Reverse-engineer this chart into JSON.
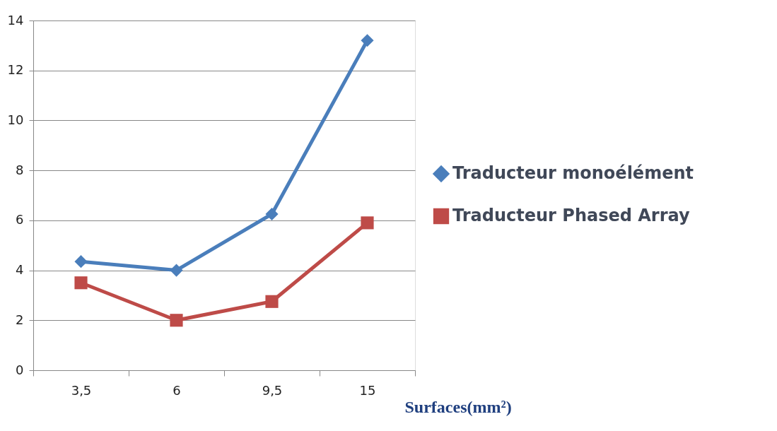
{
  "chart_data": {
    "type": "line",
    "xlabel": "Surfaces(mm²)",
    "categories": [
      "3,5",
      "6",
      "9,5",
      "15"
    ],
    "series": [
      {
        "name": "Traducteur monoélément",
        "color": "#4a7ebb",
        "marker": "diamond",
        "values": [
          4.35,
          4.0,
          6.25,
          13.2
        ]
      },
      {
        "name": "Traducteur Phased Array",
        "color": "#be4b48",
        "marker": "square",
        "values": [
          3.5,
          2.0,
          2.75,
          5.9
        ]
      }
    ],
    "ylim": [
      0,
      14
    ],
    "yticks": [
      0,
      2,
      4,
      6,
      8,
      10,
      12,
      14
    ],
    "grid": "y",
    "legend": "right",
    "line_style": "solid"
  }
}
